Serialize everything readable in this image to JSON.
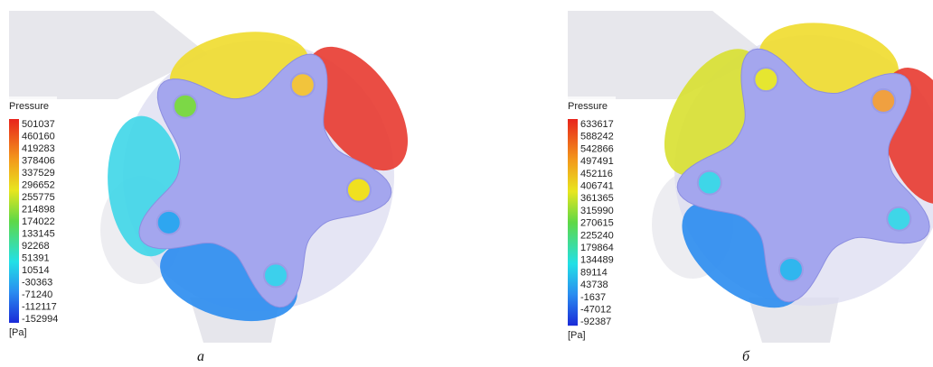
{
  "panels": [
    {
      "legend": {
        "title": "Pressure",
        "values": [
          501037,
          460160,
          419283,
          378406,
          337529,
          296652,
          255775,
          214898,
          174022,
          133145,
          92268,
          51391,
          10514,
          -30363,
          -71240,
          -112117,
          -152994
        ],
        "unit": "[Pa]"
      },
      "caption": "а"
    },
    {
      "legend": {
        "title": "Pressure",
        "values": [
          633617,
          588242,
          542866,
          497491,
          452116,
          406741,
          361365,
          315990,
          270615,
          225240,
          179864,
          134489,
          89114,
          43738,
          -1637,
          -47012,
          -92387
        ],
        "unit": "[Pa]"
      },
      "caption": "б"
    }
  ]
}
